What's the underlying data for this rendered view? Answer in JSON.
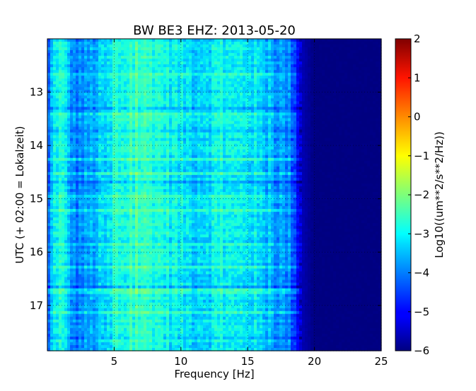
{
  "chart_data": {
    "type": "heatmap",
    "title": "BW BE3 EHZ: 2013-05-20",
    "xlabel": "Frequency [Hz]",
    "ylabel": "UTC (+ 02:00 = Lokalzeit)",
    "xlim": [
      0,
      25
    ],
    "ylim": [
      17.85,
      12.0
    ],
    "x_ticks": [
      5,
      10,
      15,
      20,
      25
    ],
    "x_tick_labels": [
      "5",
      "10",
      "15",
      "20",
      "25"
    ],
    "y_ticks": [
      13,
      14,
      15,
      16,
      17
    ],
    "y_tick_labels": [
      "13",
      "14",
      "15",
      "16",
      "17"
    ],
    "grid": true,
    "colormap": "jet",
    "colorbar": {
      "label": "Log10((um**2/s**2/Hz))",
      "range": [
        -6,
        2
      ],
      "ticks": [
        2,
        1,
        0,
        -1,
        -2,
        -3,
        -4,
        -5,
        -6
      ],
      "tick_labels": [
        "2",
        "1",
        "0",
        "−1",
        "−2",
        "−3",
        "−4",
        "−5",
        "−6"
      ]
    },
    "spectral_profile": {
      "frequency_hz": [
        0,
        0.3,
        0.6,
        1.0,
        1.5,
        2,
        3,
        4,
        5,
        6,
        7,
        8,
        9,
        10,
        11,
        12,
        13,
        14,
        15,
        16,
        17,
        18,
        18.5,
        19,
        20,
        25
      ],
      "log10_psd": [
        -4.6,
        -3.6,
        -3.0,
        -2.9,
        -3.4,
        -4.0,
        -3.8,
        -3.5,
        -3.2,
        -2.9,
        -2.7,
        -2.8,
        -3.0,
        -3.2,
        -3.3,
        -3.2,
        -3.1,
        -3.2,
        -3.1,
        -3.4,
        -3.7,
        -3.9,
        -4.3,
        -5.6,
        -6.0,
        -6.0
      ]
    }
  }
}
